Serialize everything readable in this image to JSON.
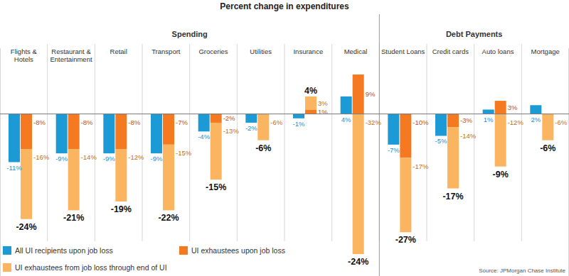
{
  "chart_data": {
    "type": "bar",
    "title": "Percent change in expenditures",
    "source": "Source: JPMorgan Chase Institute",
    "categories": [
      "Flights & Hotels",
      "Restaurant & Entertainment",
      "Retail",
      "Transport",
      "Groceries",
      "Utilities",
      "Insurance",
      "Medical",
      "Student Loans",
      "Credit cards",
      "Auto loans",
      "Mortgage"
    ],
    "groups": [
      {
        "label": "Spending",
        "size": 8
      },
      {
        "label": "Debt Payments",
        "size": 4
      }
    ],
    "series": [
      {
        "name": "All UI recipients upon job loss",
        "color": "#1b9ad6",
        "values": [
          -11,
          -9,
          -9,
          -9,
          -4,
          -2,
          -1,
          4,
          -7,
          -5,
          1,
          2
        ],
        "value_labels": [
          "-11%",
          "-9%",
          "-9%",
          "-9%",
          "-4%",
          "-2%",
          "-1%",
          "4%",
          "-7%",
          "-5%",
          "1%",
          "2%"
        ]
      },
      {
        "name": "UI exhaustees upon job loss",
        "color": "#f47920",
        "values": [
          -8,
          -8,
          -8,
          -7,
          -2,
          null,
          1,
          9,
          -10,
          -3,
          3,
          null
        ],
        "value_labels": [
          "-8%",
          "-8%",
          "-8%",
          "-7%",
          "-2%",
          null,
          "1%",
          "9%",
          "-10%",
          "-3%",
          "3%",
          null
        ]
      },
      {
        "name": "UI exhaustees from job loss through end of UI",
        "color": "#fbb45f",
        "values": [
          -16,
          -14,
          -12,
          -15,
          -13,
          -6,
          3,
          -32,
          -17,
          -14,
          -12,
          -6
        ],
        "value_labels": [
          "-16%",
          "-14%",
          "-12%",
          "-15%",
          "-13%",
          "-6%",
          "3%",
          "-32%",
          "-17%",
          "-14%",
          "-12%",
          "-6%"
        ]
      }
    ],
    "totals": {
      "values": [
        -24,
        -21,
        -19,
        -22,
        -15,
        -6,
        4,
        -24,
        -27,
        -17,
        -9,
        -6
      ],
      "value_labels": [
        "-24%",
        "-21%",
        "-19%",
        "-22%",
        "-15%",
        "-6%",
        "4%",
        "-24%",
        "-27%",
        "-17%",
        "-9%",
        "-6%"
      ]
    },
    "ylim": [
      -37,
      15
    ],
    "stacked": true,
    "data_labels": true,
    "tick_labels": false,
    "grid": false,
    "legend": "bottom-left"
  }
}
